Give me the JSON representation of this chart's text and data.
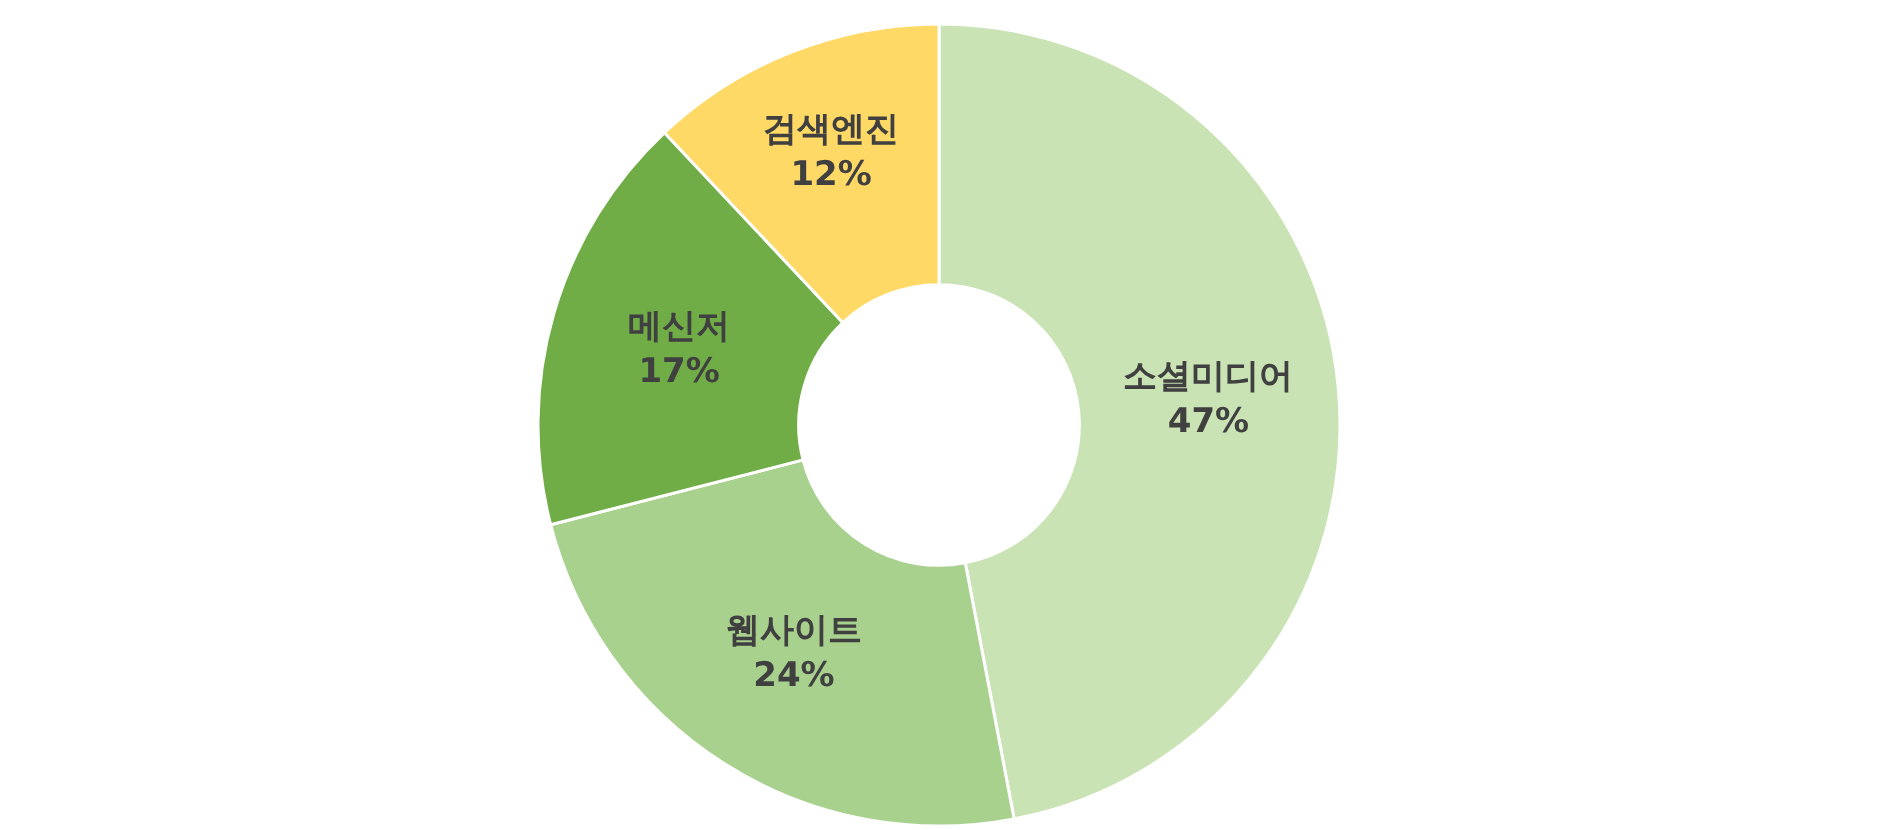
{
  "chart_data": {
    "type": "donut",
    "categories": [
      "소셜미디어",
      "웹사이트",
      "메신저",
      "검색엔진"
    ],
    "values": [
      47,
      24,
      17,
      12
    ],
    "value_labels": [
      "47%",
      "24%",
      "17%",
      "12%"
    ],
    "colors": [
      "#c9e3b5",
      "#a9d18e",
      "#70ad47",
      "#ffd966"
    ],
    "legend": false
  }
}
